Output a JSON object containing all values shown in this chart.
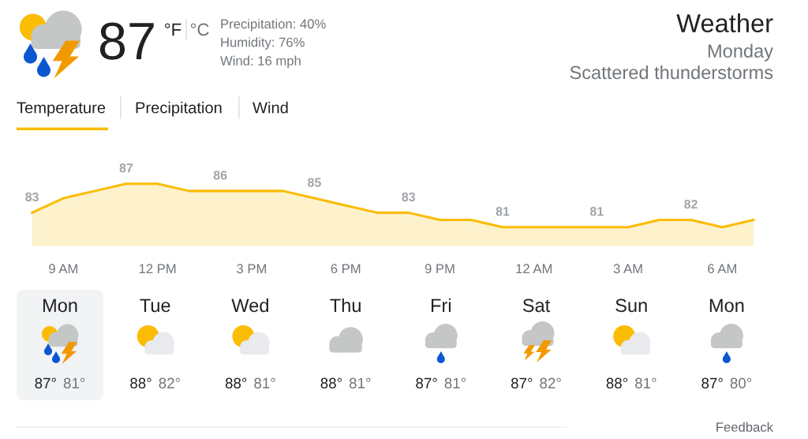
{
  "chart_data": [
    {
      "type": "other",
      "title": "Weather",
      "subtitle": "Monday",
      "annotations": [
        "87",
        "°F",
        "°C",
        "Precipitation: 40%",
        "Humidity: 76%",
        "Wind: 16 mph",
        "Scattered thunderstorms",
        "Temperature",
        "Precipitation",
        "Wind"
      ]
    },
    {
      "type": "area",
      "categories": [
        null,
        "9 AM",
        null,
        null,
        "12 PM",
        null,
        null,
        "3 PM",
        null,
        null,
        "6 PM",
        null,
        null,
        "9 PM",
        null,
        null,
        "12 AM",
        null,
        null,
        "3 AM",
        null,
        null,
        "6 AM",
        null
      ],
      "series": [
        {
          "color": "#fbbc04",
          "values": [
            83,
            85,
            86,
            87,
            87,
            86,
            86,
            86,
            86,
            85,
            84,
            83,
            83,
            82,
            82,
            81,
            81,
            81,
            81,
            81,
            82,
            82,
            81,
            82
          ],
          "value_labels": [
            "83",
            null,
            null,
            "87",
            null,
            null,
            "86",
            null,
            null,
            "85",
            null,
            null,
            "83",
            null,
            null,
            "81",
            null,
            null,
            "81",
            null,
            null,
            "82",
            null,
            null
          ]
        }
      ],
      "tick_labels": "x"
    },
    {
      "type": "other",
      "categories": [
        "Mon",
        "Tue",
        "Wed",
        "Thu",
        "Fri",
        "Sat",
        "Sun",
        "Mon"
      ],
      "annotations": [
        "87°",
        "81°",
        "88°",
        "82°",
        "88°",
        "81°",
        "88°",
        "81°",
        "87°",
        "81°",
        "87°",
        "82°",
        "88°",
        "81°",
        "87°",
        "80°",
        "Feedback"
      ]
    }
  ]
}
